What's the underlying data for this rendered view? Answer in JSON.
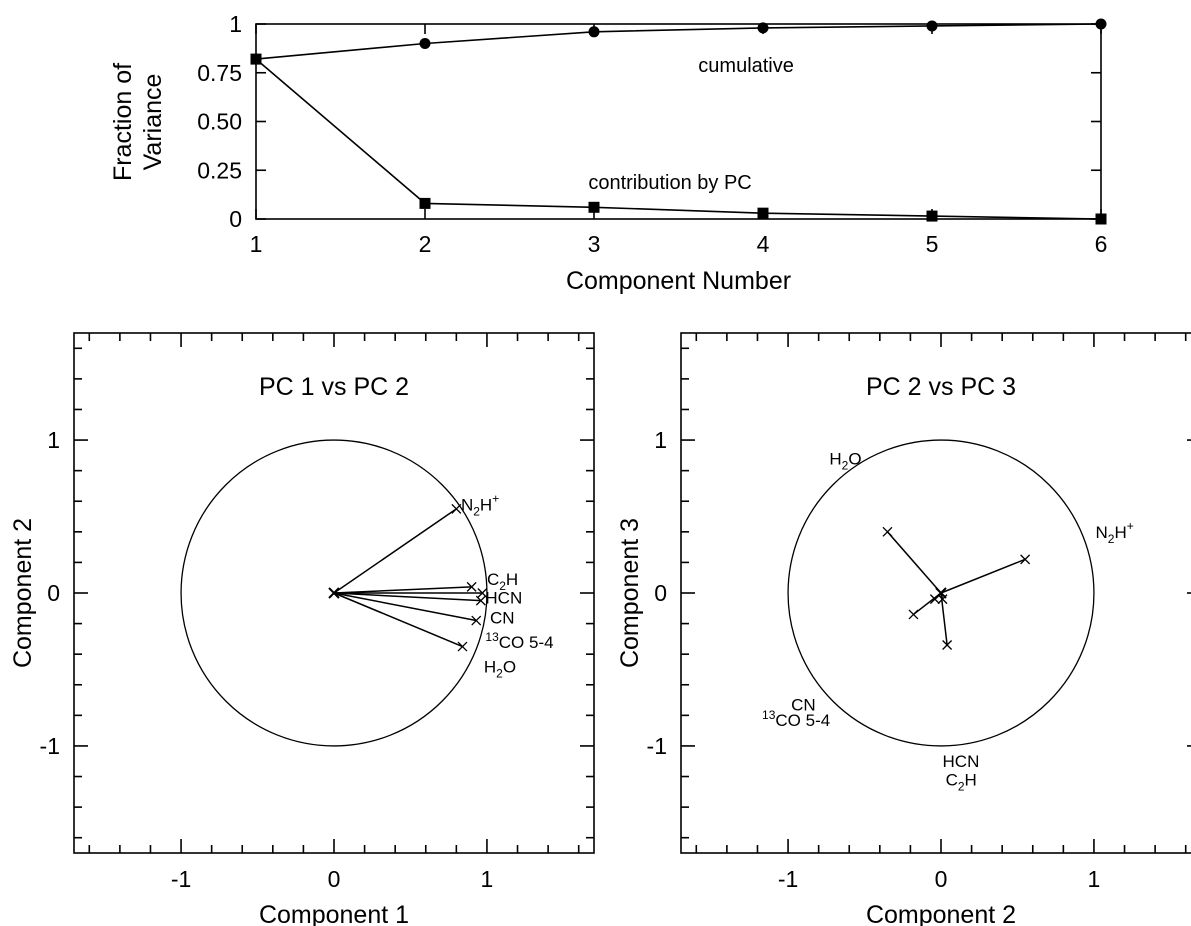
{
  "chart_data": [
    {
      "type": "line",
      "xlabel": "Component Number",
      "ylabel_lines": [
        "Fraction of",
        "Variance"
      ],
      "xlim": [
        1,
        6
      ],
      "ylim": [
        0,
        1
      ],
      "x_ticks": [
        1,
        2,
        3,
        4,
        5,
        6
      ],
      "x_tick_labels": [
        "1",
        "2",
        "3",
        "4",
        "5",
        "6"
      ],
      "y_ticks": [
        0,
        0.25,
        0.5,
        0.75,
        1
      ],
      "y_tick_labels": [
        "0",
        "0.25",
        "0.50",
        "0.75",
        "1"
      ],
      "x": [
        1,
        2,
        3,
        4,
        5,
        6
      ],
      "series": [
        {
          "name": "cumulative",
          "values": [
            0.82,
            0.9,
            0.96,
            0.98,
            0.99,
            1.0
          ],
          "marker": "circle"
        },
        {
          "name": "contribution by PC",
          "values": [
            0.82,
            0.08,
            0.06,
            0.03,
            0.015,
            0.0
          ],
          "marker": "square"
        }
      ],
      "annotations": [
        {
          "text": "cumulative",
          "x": 3.9,
          "y": 0.79
        },
        {
          "text": "contribution by PC",
          "x": 3.45,
          "y": 0.19
        }
      ]
    },
    {
      "type": "scatter",
      "title": "PC 1 vs PC 2",
      "xlabel": "Component 1",
      "ylabel": "Component 2",
      "xlim": [
        -1.7,
        1.7
      ],
      "ylim": [
        -1.7,
        1.7
      ],
      "tick_labels": [
        "-1",
        "0",
        "1"
      ],
      "unit_circle": true,
      "vectors": [
        {
          "name": "N2H+",
          "x": 0.8,
          "y": 0.55
        },
        {
          "name": "C2H",
          "x": 0.9,
          "y": 0.04
        },
        {
          "name": "HCN",
          "x": 0.97,
          "y": 0.0
        },
        {
          "name": "CN",
          "x": 0.96,
          "y": -0.05
        },
        {
          "name": "13CO 5-4",
          "x": 0.93,
          "y": -0.18
        },
        {
          "name": "H2O",
          "x": 0.84,
          "y": -0.35
        }
      ],
      "labels": [
        {
          "main": "N",
          "sub": "2",
          "main2": "H",
          "sup": "+",
          "x": 0.83,
          "y": 0.58
        },
        {
          "main": "C",
          "sub": "2",
          "main2": "H",
          "x": 1.0,
          "y": 0.09
        },
        {
          "main": "HCN",
          "x": 0.99,
          "y": -0.03
        },
        {
          "main": "CN",
          "x": 1.02,
          "y": -0.16
        },
        {
          "sup_pre": "13",
          "main": "CO 5-4",
          "x": 0.99,
          "y": -0.32
        },
        {
          "main": "H",
          "sub": "2",
          "main2": "O",
          "x": 0.98,
          "y": -0.48
        }
      ]
    },
    {
      "type": "scatter",
      "title": "PC 2 vs PC 3",
      "xlabel": "Component 2",
      "ylabel": "Component 3",
      "xlim": [
        -1.7,
        1.7
      ],
      "ylim": [
        -1.7,
        1.7
      ],
      "tick_labels": [
        "-1",
        "0",
        "1"
      ],
      "unit_circle": true,
      "vectors": [
        {
          "name": "N2H+",
          "x": 0.55,
          "y": 0.22
        },
        {
          "name": "H2O",
          "x": -0.35,
          "y": 0.4
        },
        {
          "name": "13CO 5-4",
          "x": -0.18,
          "y": -0.14
        },
        {
          "name": "CN",
          "x": -0.04,
          "y": -0.04
        },
        {
          "name": "HCN",
          "x": 0.01,
          "y": -0.04
        },
        {
          "name": "C2H",
          "x": 0.04,
          "y": -0.34
        }
      ],
      "labels": [
        {
          "main": "H",
          "sub": "2",
          "main2": "O",
          "x": -0.73,
          "y": 0.88
        },
        {
          "main": "N",
          "sub": "2",
          "main2": "H",
          "sup": "+",
          "x": 1.01,
          "y": 0.4
        },
        {
          "main": "CN",
          "x": -0.98,
          "y": -0.73
        },
        {
          "sup_pre": "13",
          "main": "CO 5-4",
          "x": -1.17,
          "y": -0.83
        },
        {
          "main": "HCN",
          "x": 0.01,
          "y": -1.1
        },
        {
          "main": "C",
          "sub": "2",
          "main2": "H",
          "x": 0.03,
          "y": -1.22
        }
      ]
    }
  ]
}
